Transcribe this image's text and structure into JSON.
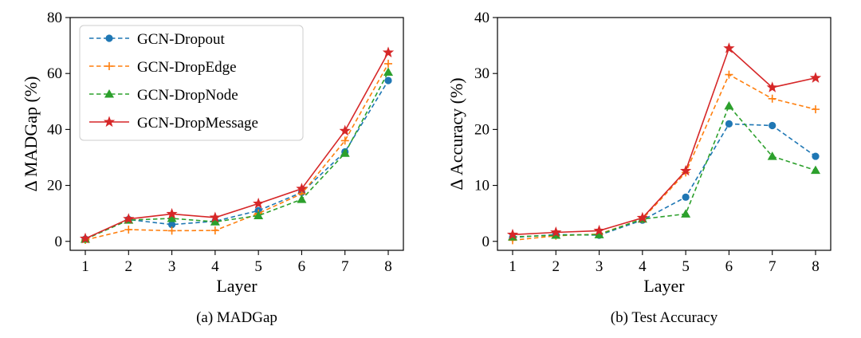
{
  "chart_data": [
    {
      "type": "line",
      "caption": "(a) MADGap",
      "xlabel": "Layer",
      "ylabel": "Δ MADGap (%)",
      "x": [
        1,
        2,
        3,
        4,
        5,
        6,
        7,
        8
      ],
      "xticks": [
        "1",
        "2",
        "3",
        "4",
        "5",
        "6",
        "7",
        "8"
      ],
      "ylim": [
        0,
        80
      ],
      "yticks": [
        "0",
        "20",
        "40",
        "60",
        "80"
      ],
      "grid": false,
      "legend_position": "top-left",
      "series": [
        {
          "name": "GCN-Dropout",
          "color": "#1f77b4",
          "dash": true,
          "marker": "circle",
          "values": [
            0.8,
            7.8,
            6.0,
            7.2,
            11.0,
            17.5,
            32.0,
            57.5
          ]
        },
        {
          "name": "GCN-DropEdge",
          "color": "#ff7f0e",
          "dash": true,
          "marker": "plus",
          "values": [
            0.5,
            4.2,
            3.8,
            3.9,
            10.0,
            17.0,
            36.0,
            63.5
          ]
        },
        {
          "name": "GCN-DropNode",
          "color": "#2ca02c",
          "dash": true,
          "marker": "triangle",
          "values": [
            0.8,
            7.6,
            8.2,
            7.0,
            9.2,
            15.0,
            31.5,
            60.5
          ]
        },
        {
          "name": "GCN-DropMessage",
          "color": "#d62728",
          "dash": false,
          "marker": "star",
          "values": [
            1.0,
            8.0,
            9.8,
            8.5,
            13.5,
            18.8,
            39.5,
            67.5
          ]
        }
      ]
    },
    {
      "type": "line",
      "caption": "(b) Test Accuracy",
      "xlabel": "Layer",
      "ylabel": "Δ Accuracy (%)",
      "x": [
        1,
        2,
        3,
        4,
        5,
        6,
        7,
        8
      ],
      "xticks": [
        "1",
        "2",
        "3",
        "4",
        "5",
        "6",
        "7",
        "8"
      ],
      "ylim": [
        0,
        40
      ],
      "yticks": [
        "0",
        "10",
        "20",
        "30",
        "40"
      ],
      "grid": false,
      "series": [
        {
          "name": "GCN-Dropout",
          "color": "#1f77b4",
          "dash": true,
          "marker": "circle",
          "values": [
            0.7,
            1.2,
            1.1,
            3.8,
            7.9,
            21.0,
            20.7,
            15.2
          ]
        },
        {
          "name": "GCN-DropEdge",
          "color": "#ff7f0e",
          "dash": true,
          "marker": "plus",
          "values": [
            0.2,
            1.0,
            1.3,
            4.0,
            12.3,
            29.8,
            25.5,
            23.6
          ]
        },
        {
          "name": "GCN-DropNode",
          "color": "#2ca02c",
          "dash": true,
          "marker": "triangle",
          "values": [
            0.8,
            1.1,
            1.2,
            4.0,
            4.9,
            24.2,
            15.2,
            12.7
          ]
        },
        {
          "name": "GCN-DropMessage",
          "color": "#d62728",
          "dash": false,
          "marker": "star",
          "values": [
            1.2,
            1.6,
            1.9,
            4.2,
            12.6,
            34.5,
            27.5,
            29.2
          ]
        }
      ]
    }
  ]
}
